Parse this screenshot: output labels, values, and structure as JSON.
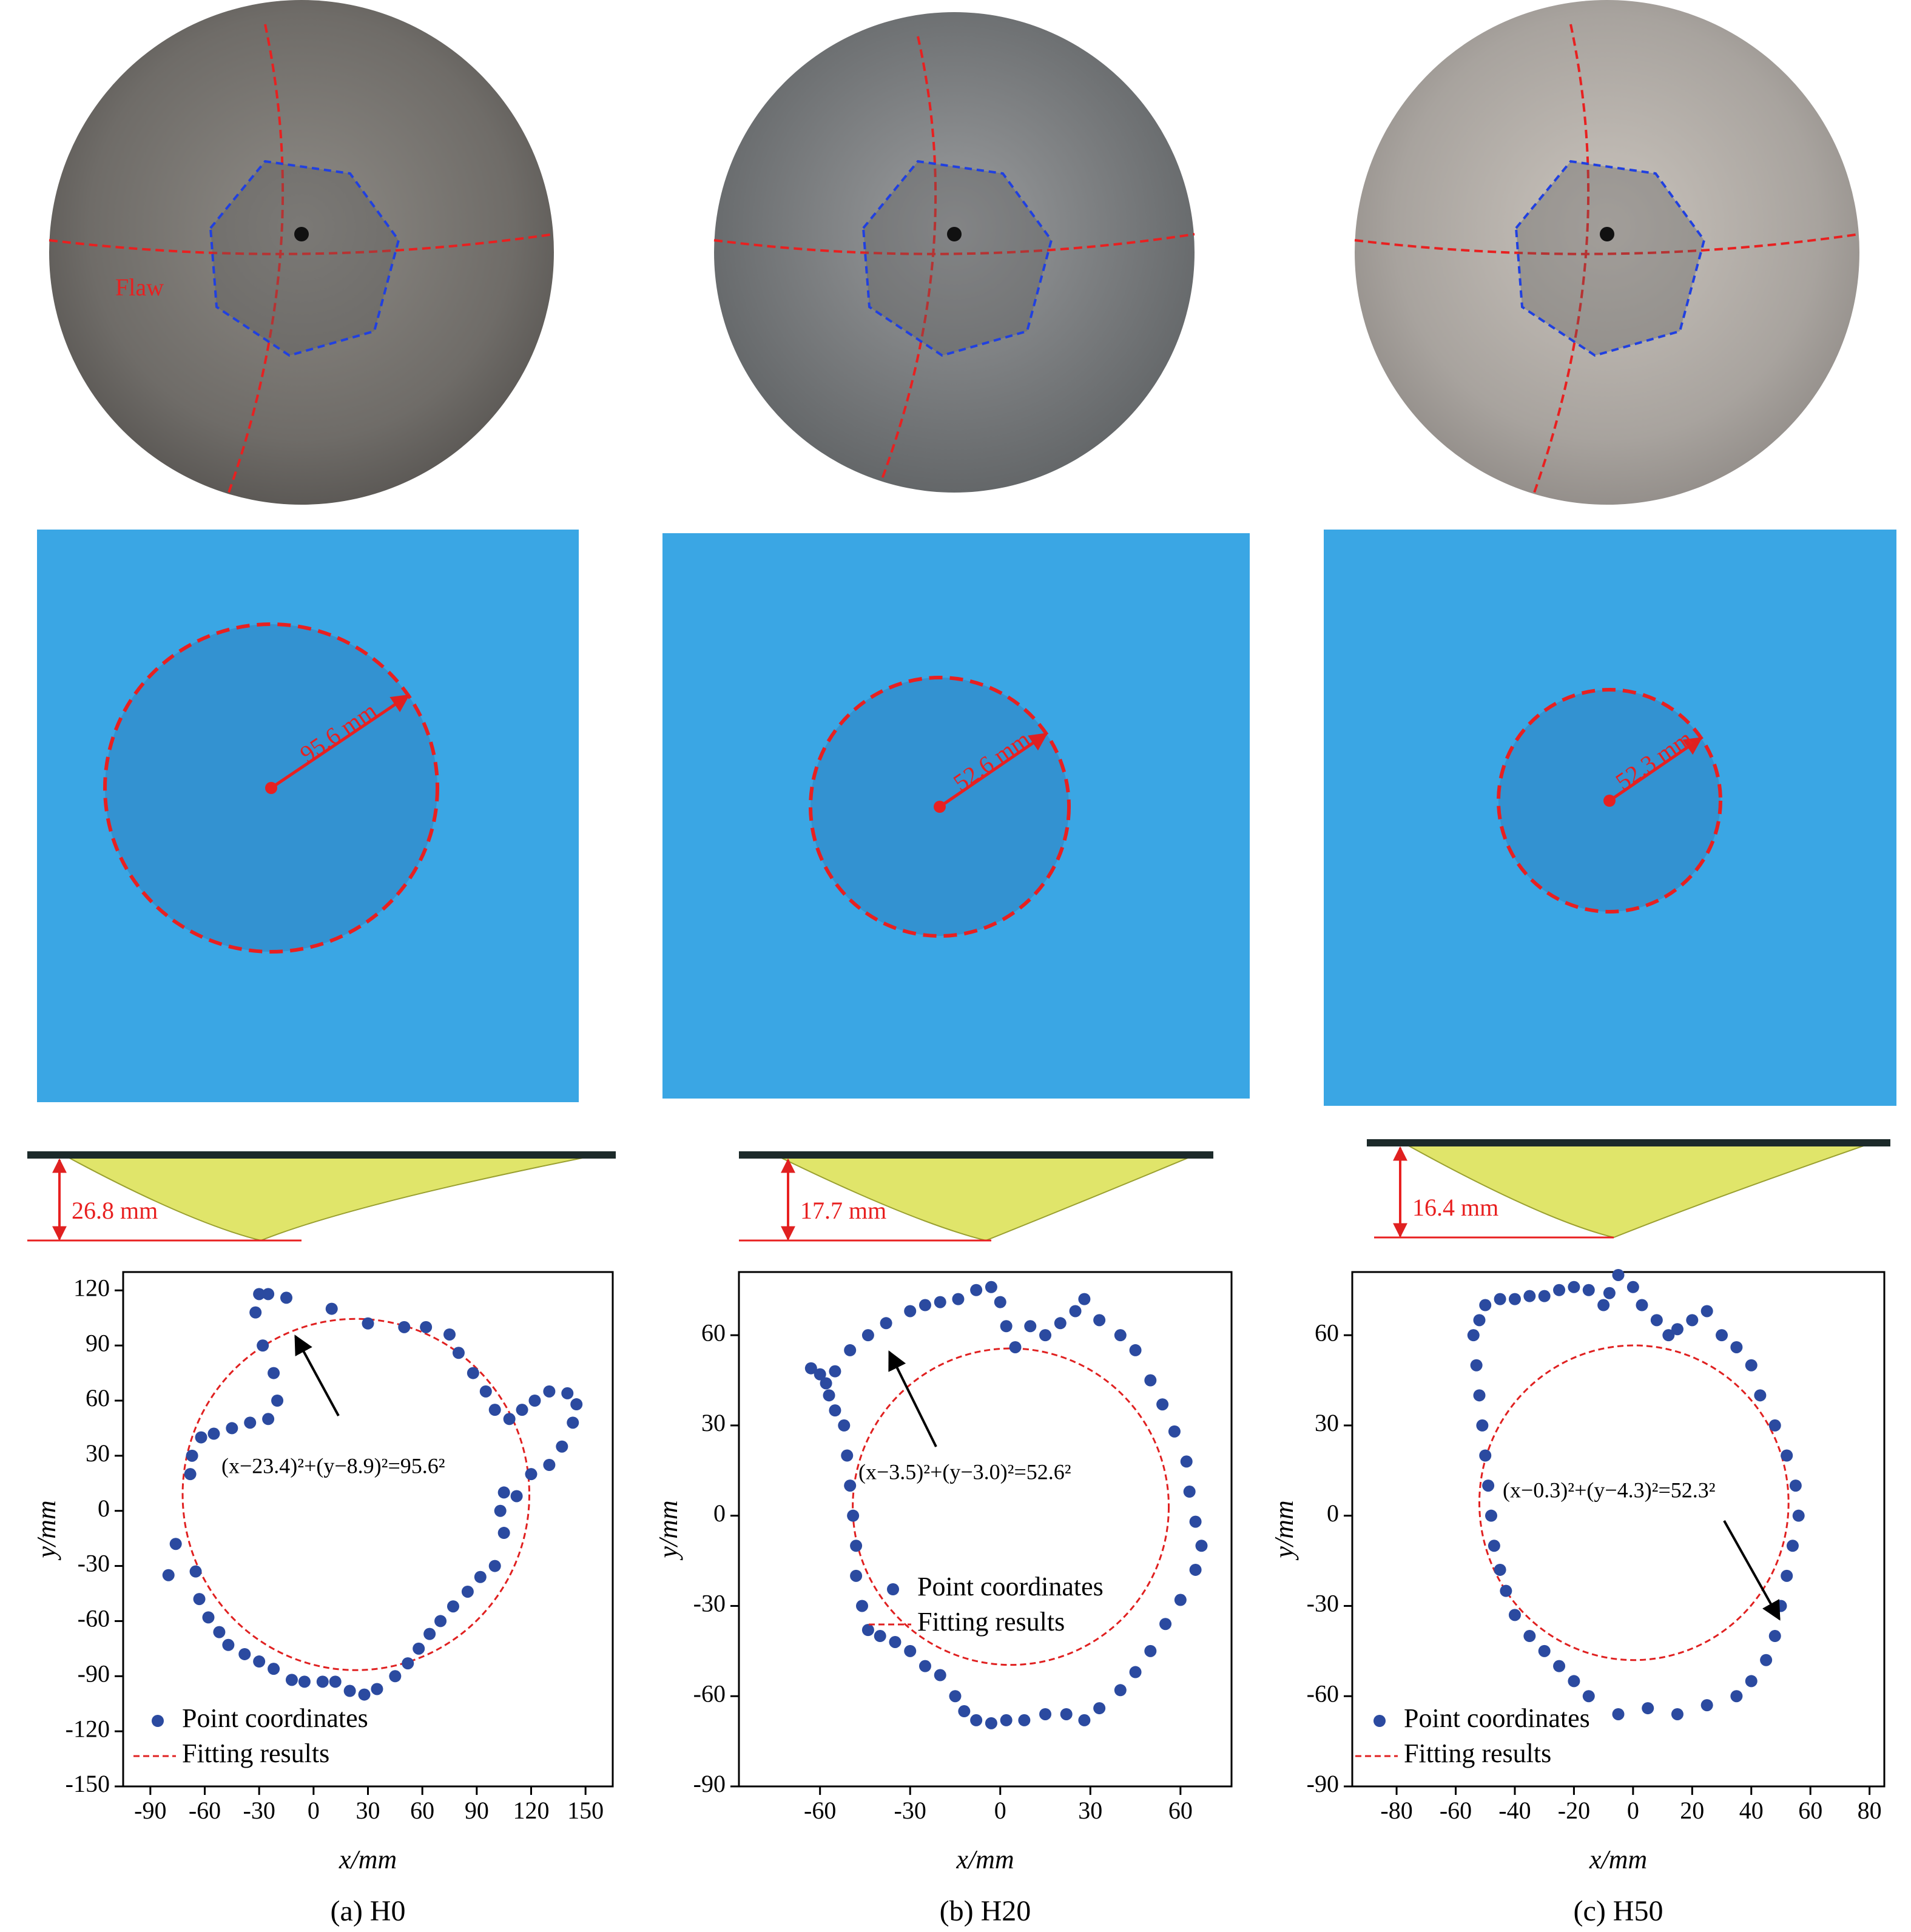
{
  "chart_data": [
    {
      "type": "scatter",
      "caption": "(a) H0",
      "photo_label": "Flaw",
      "radius_label": "95.6 mm",
      "depth_label": "26.8 mm",
      "xlabel": "x/mm",
      "ylabel": "y/mm",
      "xlim": [
        -105,
        165
      ],
      "ylim": [
        -150,
        130
      ],
      "xticks": [
        -90,
        -60,
        -30,
        0,
        30,
        60,
        90,
        120,
        150
      ],
      "yticks": [
        -150,
        -120,
        -90,
        -60,
        -30,
        0,
        30,
        60,
        90,
        120
      ],
      "series": [
        {
          "name": "Point coordinates",
          "color": "#2b4aa0",
          "x": [
            -80,
            -76,
            -65,
            -63,
            -58,
            -52,
            -47,
            -38,
            -30,
            -22,
            -12,
            -5,
            5,
            12,
            20,
            28,
            35,
            45,
            52,
            58,
            64,
            70,
            77,
            85,
            92,
            100,
            105,
            103,
            105,
            112,
            120,
            130,
            137,
            143,
            145,
            140,
            130,
            122,
            115,
            108,
            100,
            95,
            88,
            80,
            75,
            62,
            50,
            30,
            10,
            -15,
            -25,
            -30,
            -32,
            -28,
            -22,
            -20,
            -25,
            -35,
            -45,
            -55,
            -62,
            -67,
            -68
          ],
          "y": [
            -35,
            -18,
            -33,
            -48,
            -58,
            -66,
            -73,
            -78,
            -82,
            -86,
            -92,
            -93,
            -93,
            -93,
            -98,
            -100,
            -97,
            -90,
            -83,
            -75,
            -67,
            -60,
            -52,
            -44,
            -36,
            -30,
            -12,
            0,
            10,
            8,
            20,
            25,
            35,
            48,
            58,
            64,
            65,
            60,
            55,
            50,
            55,
            65,
            75,
            86,
            96,
            100,
            100,
            102,
            110,
            116,
            118,
            118,
            108,
            90,
            75,
            60,
            50,
            48,
            45,
            42,
            40,
            30,
            20
          ]
        }
      ],
      "fit": {
        "name": "Fitting results",
        "color": "#e02020",
        "cx": 23.4,
        "cy": 8.9,
        "r": 95.6,
        "equation": "(x−23.4)²+(y−8.9)²=95.6²"
      }
    },
    {
      "type": "scatter",
      "caption": "(b) H20",
      "radius_label": "52.6 mm",
      "depth_label": "17.7 mm",
      "xlabel": "x/mm",
      "ylabel": "y/mm",
      "xlim": [
        -87,
        77
      ],
      "ylim": [
        -90,
        81
      ],
      "xticks": [
        -60,
        -30,
        0,
        30,
        60
      ],
      "yticks": [
        -90,
        -60,
        -30,
        0,
        30,
        60
      ],
      "series": [
        {
          "name": "Point coordinates",
          "color": "#2b4aa0",
          "x": [
            -63,
            -60,
            -58,
            -57,
            -55,
            -52,
            -51,
            -50,
            -49,
            -48,
            -48,
            -46,
            -44,
            -40,
            -35,
            -30,
            -25,
            -20,
            -15,
            -12,
            -8,
            -3,
            2,
            8,
            15,
            22,
            28,
            33,
            40,
            45,
            50,
            55,
            60,
            65,
            67,
            65,
            63,
            62,
            58,
            54,
            50,
            45,
            40,
            33,
            28,
            25,
            20,
            15,
            10,
            5,
            2,
            0,
            -3,
            -8,
            -14,
            -20,
            -25,
            -30,
            -38,
            -44,
            -50,
            -55
          ],
          "y": [
            49,
            47,
            44,
            40,
            35,
            30,
            20,
            10,
            0,
            -10,
            -20,
            -30,
            -38,
            -40,
            -42,
            -45,
            -50,
            -53,
            -60,
            -65,
            -68,
            -69,
            -68,
            -68,
            -66,
            -66,
            -68,
            -64,
            -58,
            -52,
            -45,
            -36,
            -28,
            -18,
            -10,
            -2,
            8,
            18,
            28,
            37,
            45,
            55,
            60,
            65,
            72,
            68,
            64,
            60,
            63,
            56,
            63,
            71,
            76,
            75,
            72,
            71,
            70,
            68,
            64,
            60,
            55,
            48
          ]
        }
      ],
      "fit": {
        "name": "Fitting results",
        "color": "#e02020",
        "cx": 3.5,
        "cy": 3.0,
        "r": 52.6,
        "equation": "(x−3.5)²+(y−3.0)²=52.6²"
      }
    },
    {
      "type": "scatter",
      "caption": "(c) H50",
      "radius_label": "52.3 mm",
      "depth_label": "16.4 mm",
      "xlabel": "x/mm",
      "ylabel": "y/mm",
      "xlim": [
        -95,
        85
      ],
      "ylim": [
        -90,
        81
      ],
      "xticks": [
        -80,
        -60,
        -40,
        -20,
        0,
        20,
        40,
        60,
        80
      ],
      "yticks": [
        -90,
        -60,
        -30,
        0,
        30,
        60
      ],
      "series": [
        {
          "name": "Point coordinates",
          "color": "#2b4aa0",
          "x": [
            -47,
            -48,
            -49,
            -50,
            -51,
            -52,
            -53,
            -54,
            -52,
            -50,
            -45,
            -40,
            -35,
            -30,
            -25,
            -20,
            -15,
            -10,
            -8,
            -5,
            0,
            3,
            8,
            12,
            15,
            20,
            25,
            30,
            35,
            40,
            43,
            48,
            52,
            55,
            56,
            54,
            52,
            50,
            48,
            45,
            40,
            35,
            25,
            15,
            5,
            -5,
            -15,
            -20,
            -25,
            -30,
            -35,
            -40,
            -43,
            -45
          ],
          "y": [
            -10,
            0,
            10,
            20,
            30,
            40,
            50,
            60,
            65,
            70,
            72,
            72,
            73,
            73,
            75,
            76,
            75,
            70,
            74,
            80,
            76,
            70,
            65,
            60,
            62,
            65,
            68,
            60,
            56,
            50,
            40,
            30,
            20,
            10,
            0,
            -10,
            -20,
            -30,
            -40,
            -48,
            -55,
            -60,
            -63,
            -66,
            -64,
            -66,
            -60,
            -55,
            -50,
            -45,
            -40,
            -33,
            -25,
            -18
          ]
        }
      ],
      "fit": {
        "name": "Fitting results",
        "color": "#e02020",
        "cx": 0.3,
        "cy": 4.3,
        "r": 52.3,
        "equation": "(x−0.3)²+(y−4.3)²=52.3²"
      }
    }
  ]
}
